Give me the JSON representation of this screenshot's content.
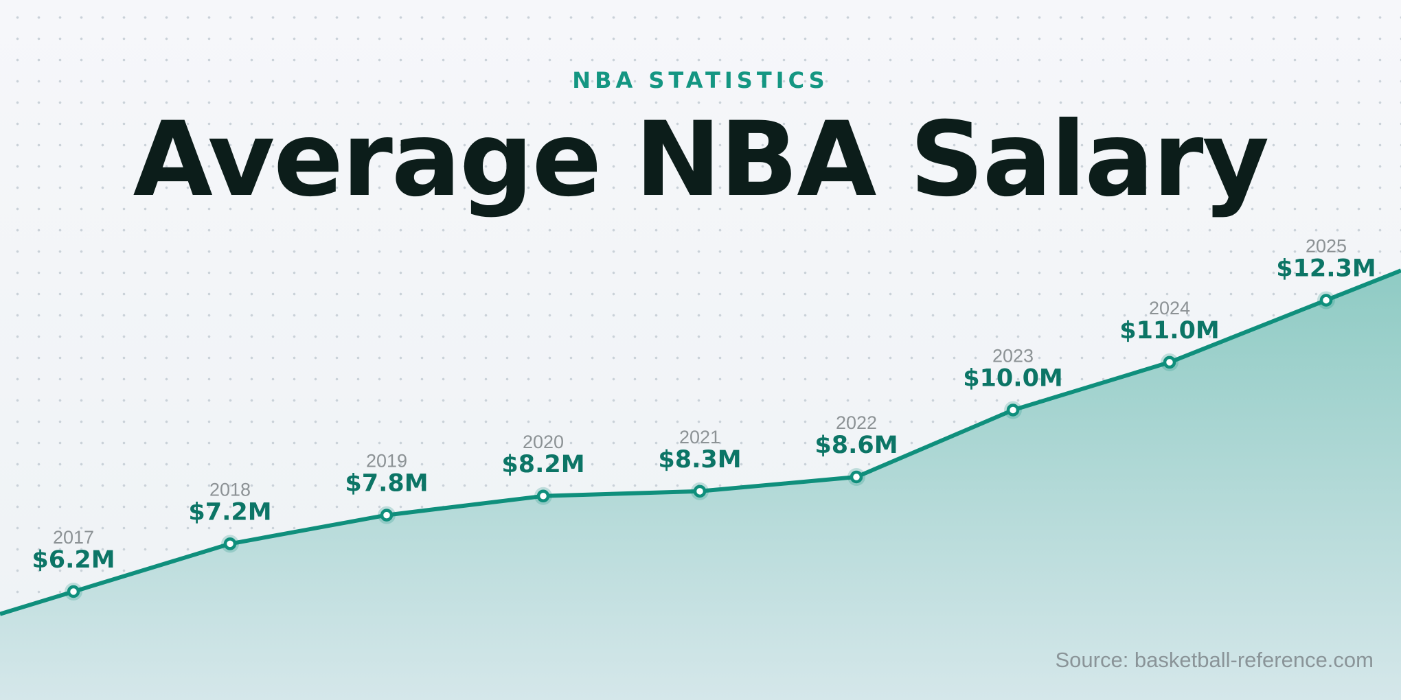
{
  "header": {
    "eyebrow": "NBA STATISTICS",
    "title": "Average NBA Salary"
  },
  "footer": {
    "source": "Source: basketball-reference.com"
  },
  "colors": {
    "accent": "#149682",
    "line": "#0f8f7c",
    "value_text": "#0c7566",
    "area_top": "#8fcbc4",
    "area_bottom": "#d5e7ea",
    "title_text": "#0c1d1a"
  },
  "chart_data": {
    "type": "area",
    "title": "Average NBA Salary",
    "xlabel": "",
    "ylabel": "",
    "categories": [
      "2017",
      "2018",
      "2019",
      "2020",
      "2021",
      "2022",
      "2023",
      "2024",
      "2025"
    ],
    "value_labels": [
      "$6.2M",
      "$7.2M",
      "$7.8M",
      "$8.2M",
      "$8.3M",
      "$8.6M",
      "$10.0M",
      "$11.0M",
      "$12.3M"
    ],
    "values": [
      6.2,
      7.2,
      7.8,
      8.2,
      8.3,
      8.6,
      10.0,
      11.0,
      12.3
    ],
    "units": "millions USD",
    "grid": false,
    "legend": "none",
    "axes_visible": false
  }
}
